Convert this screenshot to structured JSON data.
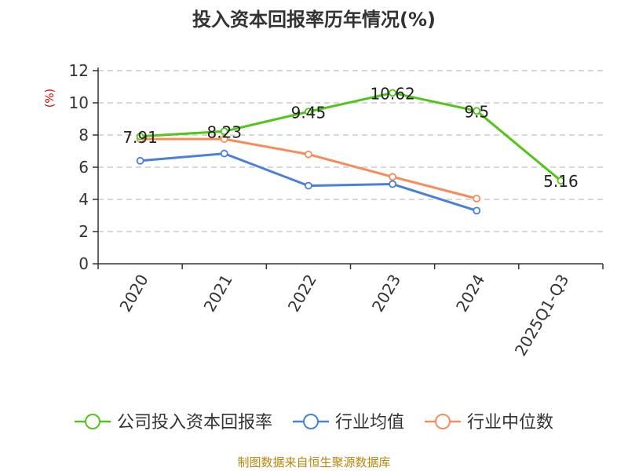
{
  "chart_data": {
    "type": "line",
    "title": "投入资本回报率历年情况(%)",
    "ylabel": "(%)",
    "xlabel": "",
    "categories": [
      "2020",
      "2021",
      "2022",
      "2023",
      "2024",
      "2025Q1-Q3"
    ],
    "ylim": [
      0,
      12
    ],
    "yticks": [
      0,
      2,
      4,
      6,
      8,
      10,
      12
    ],
    "grid": true,
    "legend_position": "bottom",
    "series": [
      {
        "name": "公司投入资本回报率",
        "color": "#52c41a",
        "values": [
          7.91,
          8.23,
          9.45,
          10.62,
          9.5,
          5.16
        ],
        "labels": [
          "7.91",
          "8.23",
          "9.45",
          "10.62",
          "9.5",
          "5.16"
        ]
      },
      {
        "name": "行业均值",
        "color": "#4a7fdc",
        "values": [
          6.4,
          6.85,
          4.85,
          4.95,
          3.3,
          null
        ]
      },
      {
        "name": "行业中位数",
        "color": "#f58c5a",
        "values": [
          7.75,
          7.75,
          6.8,
          5.4,
          4.05,
          null
        ]
      }
    ],
    "source": "制图数据来自恒生聚源数据库"
  }
}
